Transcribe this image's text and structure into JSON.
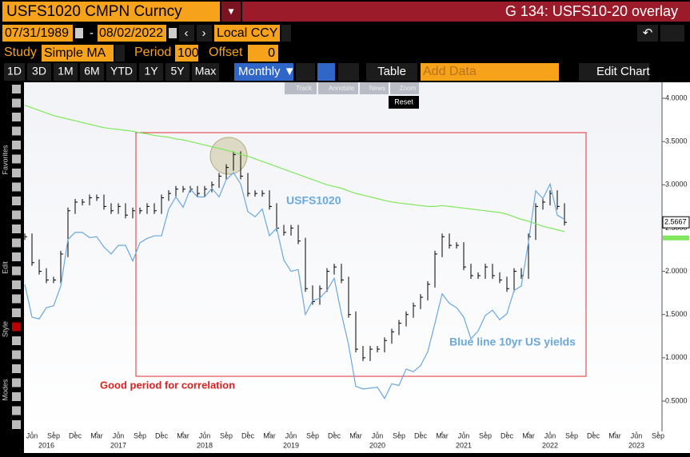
{
  "header": {
    "ticker": "USFS1020 CMPN Curncy",
    "title": "G 134: USFS10-20 overlay"
  },
  "controls": {
    "start_date": "07/31/1989",
    "separator": "-",
    "end_date": "08/02/2022",
    "currency": "Local CCY",
    "study_label": "Study",
    "study": "Simple MA",
    "period_label": "Period",
    "period": "100",
    "offset_label": "Offset",
    "offset": "0"
  },
  "toolbar": {
    "ranges": [
      "1D",
      "3D",
      "1M",
      "6M",
      "YTD",
      "1Y",
      "5Y",
      "Max"
    ],
    "frequency": "Monthly ▼",
    "table": "Table",
    "add_data": "Add Data",
    "edit_chart": "Edit Chart",
    "tools": [
      "Track",
      "Annotate",
      "News",
      "Zoom"
    ],
    "reset": "Reset"
  },
  "sidebar": [
    "Favorites",
    "Edit",
    "Style",
    "Modes"
  ],
  "chart_data": {
    "type": "line",
    "annotations": [
      "USFS1020",
      "Blue line 10yr US yields",
      "Good period for correlation"
    ],
    "x": [
      "2016-05",
      "2016-06",
      "2016-07",
      "2016-08",
      "2016-09",
      "2016-10",
      "2016-11",
      "2016-12",
      "2017-01",
      "2017-02",
      "2017-03",
      "2017-04",
      "2017-05",
      "2017-06",
      "2017-07",
      "2017-08",
      "2017-09",
      "2017-10",
      "2017-11",
      "2017-12",
      "2018-01",
      "2018-02",
      "2018-03",
      "2018-04",
      "2018-05",
      "2018-06",
      "2018-07",
      "2018-08",
      "2018-09",
      "2018-10",
      "2018-11",
      "2018-12",
      "2019-01",
      "2019-02",
      "2019-03",
      "2019-04",
      "2019-05",
      "2019-06",
      "2019-07",
      "2019-08",
      "2019-09",
      "2019-10",
      "2019-11",
      "2019-12",
      "2020-01",
      "2020-02",
      "2020-03",
      "2020-04",
      "2020-05",
      "2020-06",
      "2020-07",
      "2020-08",
      "2020-09",
      "2020-10",
      "2020-11",
      "2020-12",
      "2021-01",
      "2021-02",
      "2021-03",
      "2021-04",
      "2021-05",
      "2021-06",
      "2021-07",
      "2021-08",
      "2021-09",
      "2021-10",
      "2021-11",
      "2021-12",
      "2022-01",
      "2022-02",
      "2022-03",
      "2022-04",
      "2022-05",
      "2022-06",
      "2022-07",
      "2022-08"
    ],
    "series": [
      {
        "color": "#000000",
        "style": "bars",
        "values": [
          2.4,
          2.1,
          2.0,
          1.9,
          1.9,
          2.2,
          2.7,
          2.8,
          2.8,
          2.85,
          2.85,
          2.75,
          2.7,
          2.75,
          2.65,
          2.7,
          2.7,
          2.75,
          2.7,
          2.85,
          2.9,
          2.95,
          2.95,
          2.95,
          2.9,
          2.95,
          3.0,
          3.1,
          3.2,
          3.35,
          3.1,
          2.9,
          2.9,
          2.9,
          2.75,
          2.5,
          2.45,
          2.5,
          2.35,
          1.8,
          1.65,
          1.8,
          2.0,
          2.05,
          1.9,
          1.5,
          1.1,
          1.0,
          1.1,
          1.1,
          1.2,
          1.3,
          1.4,
          1.5,
          1.6,
          1.7,
          1.85,
          2.2,
          2.4,
          2.3,
          2.3,
          2.05,
          1.95,
          1.95,
          2.05,
          1.95,
          1.9,
          1.8,
          2.0,
          1.95,
          2.4,
          2.75,
          2.8,
          2.9,
          2.75,
          2.5667
        ]
      },
      {
        "color": "#6aa8e0",
        "style": "line",
        "values": [
          1.85,
          1.47,
          1.45,
          1.58,
          1.6,
          1.83,
          2.37,
          2.45,
          2.45,
          2.39,
          2.4,
          2.28,
          2.2,
          2.3,
          2.3,
          2.12,
          2.33,
          2.38,
          2.41,
          2.41,
          2.72,
          2.86,
          2.74,
          2.95,
          2.86,
          2.86,
          2.96,
          2.86,
          3.06,
          3.14,
          3.01,
          2.69,
          2.63,
          2.72,
          2.41,
          2.5,
          2.13,
          2.0,
          2.02,
          1.5,
          1.66,
          1.69,
          1.78,
          1.92,
          1.51,
          1.15,
          0.67,
          0.64,
          0.65,
          0.66,
          0.53,
          0.7,
          0.68,
          0.87,
          0.84,
          0.91,
          1.07,
          1.4,
          1.74,
          1.63,
          1.58,
          1.47,
          1.22,
          1.31,
          1.49,
          1.55,
          1.44,
          1.51,
          1.78,
          1.83,
          2.34,
          2.93,
          2.84,
          3.01,
          2.65,
          2.6
        ]
      },
      {
        "color": "#7ee85a",
        "style": "line",
        "values": [
          3.92,
          3.89,
          3.86,
          3.83,
          3.8,
          3.78,
          3.76,
          3.74,
          3.72,
          3.7,
          3.68,
          3.66,
          3.65,
          3.64,
          3.63,
          3.62,
          3.6,
          3.59,
          3.57,
          3.56,
          3.55,
          3.53,
          3.52,
          3.5,
          3.48,
          3.46,
          3.44,
          3.42,
          3.4,
          3.38,
          3.35,
          3.33,
          3.3,
          3.27,
          3.24,
          3.21,
          3.18,
          3.15,
          3.12,
          3.09,
          3.06,
          3.03,
          3.0,
          2.98,
          2.96,
          2.93,
          2.9,
          2.88,
          2.86,
          2.84,
          2.82,
          2.8,
          2.79,
          2.78,
          2.77,
          2.76,
          2.75,
          2.75,
          2.76,
          2.75,
          2.74,
          2.73,
          2.72,
          2.71,
          2.7,
          2.69,
          2.68,
          2.66,
          2.63,
          2.6,
          2.58,
          2.55,
          2.52,
          2.5,
          2.48,
          2.46
        ]
      }
    ],
    "ylim": [
      0.149,
      4.185
    ],
    "yticks": [
      {
        "value": 0.5,
        "label": "0.5000"
      },
      {
        "value": 1.0,
        "label": "1.0000"
      },
      {
        "value": 1.5,
        "label": "1.5000"
      },
      {
        "value": 2.0,
        "label": "2.0000"
      },
      {
        "value": 2.5,
        "label": "2.5000"
      },
      {
        "value": 3.0,
        "label": "3.0000"
      },
      {
        "value": 3.5,
        "label": "3.5000"
      },
      {
        "value": 4.0,
        "label": "4.0000"
      }
    ],
    "xticks": [
      {
        "value": "2016-06",
        "label": "Jun"
      },
      {
        "value": "2016-09",
        "label": "Sep"
      },
      {
        "value": "2016-12",
        "label": "Dec"
      },
      {
        "value": "2017-03",
        "label": "Mar"
      },
      {
        "value": "2017-06",
        "label": "Jun"
      },
      {
        "value": "2017-09",
        "label": "Sep"
      },
      {
        "value": "2017-12",
        "label": "Dec"
      },
      {
        "value": "2018-03",
        "label": "Mar"
      },
      {
        "value": "2018-06",
        "label": "Jun"
      },
      {
        "value": "2018-09",
        "label": "Sep"
      },
      {
        "value": "2018-12",
        "label": "Dec"
      },
      {
        "value": "2019-03",
        "label": "Mar"
      },
      {
        "value": "2019-06",
        "label": "Jun"
      },
      {
        "value": "2019-09",
        "label": "Sep"
      },
      {
        "value": "2019-12",
        "label": "Dec"
      },
      {
        "value": "2020-03",
        "label": "Mar"
      },
      {
        "value": "2020-06",
        "label": "Jun"
      },
      {
        "value": "2020-09",
        "label": "Sep"
      },
      {
        "value": "2020-12",
        "label": "Dec"
      },
      {
        "value": "2021-03",
        "label": "Mar"
      },
      {
        "value": "2021-06",
        "label": "Jun"
      },
      {
        "value": "2021-09",
        "label": "Sep"
      },
      {
        "value": "2021-12",
        "label": "Dec"
      },
      {
        "value": "2022-03",
        "label": "Mar"
      },
      {
        "value": "2022-06",
        "label": "Jun"
      },
      {
        "value": "2022-09",
        "label": "Sep"
      },
      {
        "value": "2022-12",
        "label": "Dec"
      },
      {
        "value": "2023-03",
        "label": "Mar"
      },
      {
        "value": "2023-06",
        "label": "Jun"
      },
      {
        "value": "2023-09",
        "label": "Sep"
      }
    ],
    "year_ticks": [
      {
        "value": "2016-08",
        "label": "2016"
      },
      {
        "value": "2017-06",
        "label": "2017"
      },
      {
        "value": "2018-06",
        "label": "2018"
      },
      {
        "value": "2019-06",
        "label": "2019"
      },
      {
        "value": "2020-06",
        "label": "2020"
      },
      {
        "value": "2021-06",
        "label": "2021"
      },
      {
        "value": "2022-06",
        "label": "2022"
      },
      {
        "value": "2023-06",
        "label": "2023"
      }
    ]
  }
}
